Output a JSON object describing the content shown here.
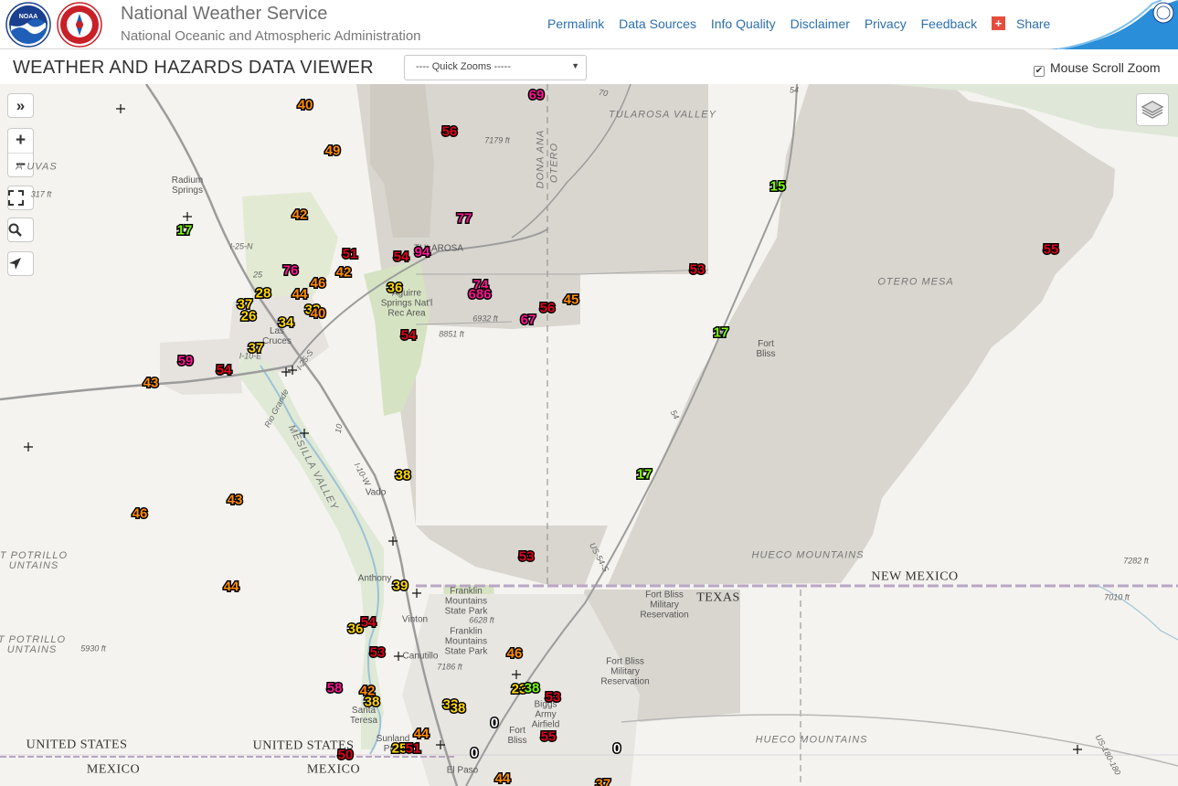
{
  "header": {
    "title": "National Weather Service",
    "subtitle": "National Oceanic and Atmospheric Administration",
    "links": [
      "Permalink",
      "Data Sources",
      "Info Quality",
      "Disclaimer",
      "Privacy",
      "Feedback"
    ],
    "share_label": "Share"
  },
  "toolbar": {
    "title": "WEATHER AND HAZARDS DATA VIEWER",
    "quick_zoom": "---- Quick Zooms -----",
    "scroll_zoom_label": "Mouse Scroll Zoom",
    "scroll_zoom_checked": true
  },
  "map_controls": {
    "expand": "»",
    "zoom_in": "+",
    "zoom_out": "−"
  },
  "observations": [
    {
      "v": "40",
      "c": "#ff8c00"
    },
    {
      "v": "49",
      "c": "#ff8c00"
    },
    {
      "v": "69",
      "c": "#ff1493"
    },
    {
      "v": "56",
      "c": "#e0001a"
    },
    {
      "v": "77",
      "c": "#ff1493"
    },
    {
      "v": "15",
      "c": "#7cfc00"
    },
    {
      "v": "42",
      "c": "#ff8c00"
    },
    {
      "v": "17",
      "c": "#7cfc00"
    },
    {
      "v": "51",
      "c": "#e0001a"
    },
    {
      "v": "54",
      "c": "#e0001a"
    },
    {
      "v": "94",
      "c": "#ff1493"
    },
    {
      "v": "55",
      "c": "#e0001a"
    },
    {
      "v": "76",
      "c": "#ff1493"
    },
    {
      "v": "46",
      "c": "#ff8c00"
    },
    {
      "v": "42",
      "c": "#ff8c00"
    },
    {
      "v": "53",
      "c": "#e0001a"
    },
    {
      "v": "74",
      "c": "#ff1493"
    },
    {
      "v": "686",
      "c": "#ff1493"
    },
    {
      "v": "36",
      "c": "#ffd700"
    },
    {
      "v": "28",
      "c": "#ffd700"
    },
    {
      "v": "44",
      "c": "#ff8c00"
    },
    {
      "v": "37",
      "c": "#ffd700"
    },
    {
      "v": "26",
      "c": "#ffd700"
    },
    {
      "v": "33",
      "c": "#ffd700"
    },
    {
      "v": "40",
      "c": "#ff8c00"
    },
    {
      "v": "56",
      "c": "#e0001a"
    },
    {
      "v": "45",
      "c": "#ff8c00"
    },
    {
      "v": "67",
      "c": "#ff1493"
    },
    {
      "v": "34",
      "c": "#ffd700"
    },
    {
      "v": "17",
      "c": "#7cfc00"
    },
    {
      "v": "54",
      "c": "#e0001a"
    },
    {
      "v": "37",
      "c": "#ffd700"
    },
    {
      "v": "59",
      "c": "#ff1493"
    },
    {
      "v": "54",
      "c": "#e0001a"
    },
    {
      "v": "43",
      "c": "#ff8c00"
    },
    {
      "v": "38",
      "c": "#ffd700"
    },
    {
      "v": "17",
      "c": "#7cfc00"
    },
    {
      "v": "43",
      "c": "#ff8c00"
    },
    {
      "v": "46",
      "c": "#ff8c00"
    },
    {
      "v": "53",
      "c": "#e0001a"
    },
    {
      "v": "44",
      "c": "#ff8c00"
    },
    {
      "v": "39",
      "c": "#ffd700"
    },
    {
      "v": "36",
      "c": "#ffd700"
    },
    {
      "v": "54",
      "c": "#e0001a"
    },
    {
      "v": "53",
      "c": "#e0001a"
    },
    {
      "v": "46",
      "c": "#ff8c00"
    },
    {
      "v": "58",
      "c": "#ff1493"
    },
    {
      "v": "42",
      "c": "#ff8c00"
    },
    {
      "v": "38",
      "c": "#ffd700"
    },
    {
      "v": "23",
      "c": "#ffd700"
    },
    {
      "v": "38",
      "c": "#7cfc00"
    },
    {
      "v": "33",
      "c": "#ffd700"
    },
    {
      "v": "38",
      "c": "#ffd700"
    },
    {
      "v": "53",
      "c": "#e0001a"
    },
    {
      "v": "0",
      "c": "#ffffff"
    },
    {
      "v": "44",
      "c": "#ff8c00"
    },
    {
      "v": "55",
      "c": "#e0001a"
    },
    {
      "v": "25",
      "c": "#ffd700"
    },
    {
      "v": "51",
      "c": "#e0001a"
    },
    {
      "v": "0",
      "c": "#ffffff"
    },
    {
      "v": "0",
      "c": "#ffffff"
    },
    {
      "v": "50",
      "c": "#e0001a"
    },
    {
      "v": "44",
      "c": "#ff8c00"
    },
    {
      "v": "37",
      "c": "#ff8c00"
    }
  ],
  "place_labels": [
    "TULAROSA VALLEY",
    "7179 ft",
    "DONA ANA",
    "OTERO",
    "Radium\nSprings",
    "A UVAS",
    "317 ft",
    "Aguirre\nSprings Nat'l\nRec Area",
    "6932 ft",
    "8851 ft",
    "OTERO MESA",
    "Fort\nBliss",
    "Las\nCruces",
    "MESILLA VALLEY",
    "Vado",
    "T POTRILLO\nUNTAINS",
    "HUECO MOUNTAINS",
    "7282 ft",
    "NEW MEXICO",
    "TEXAS",
    "Fort Bliss\nMilitary\nReservation",
    "Anthony",
    "Franklin\nMountains\nState Park",
    "6628 ft",
    "Vinton",
    "Franklin\nMountains\nState Park",
    "7186 ft",
    "Canutillo",
    "Fort Bliss\nMilitary\nReservation",
    "7010 ft",
    "5930 ft",
    "T POTRILLO\nUNTAINS",
    "Santa\nTeresa",
    "Sunland\nPark",
    "Biggs\nArmy\nAirfield",
    "Fort\nBliss",
    "HUECO MOUNTAINS",
    "UNITED STATES",
    "UNITED STATES",
    "MEXICO",
    "MEXICO",
    "El Paso",
    "TULAROSA",
    "I-25-N",
    "I-10-E",
    "I-25-S",
    "I-10-W",
    "US-54-S",
    "US-180-180",
    "Rio Grande",
    "70",
    "54",
    "10",
    "25",
    "54"
  ]
}
